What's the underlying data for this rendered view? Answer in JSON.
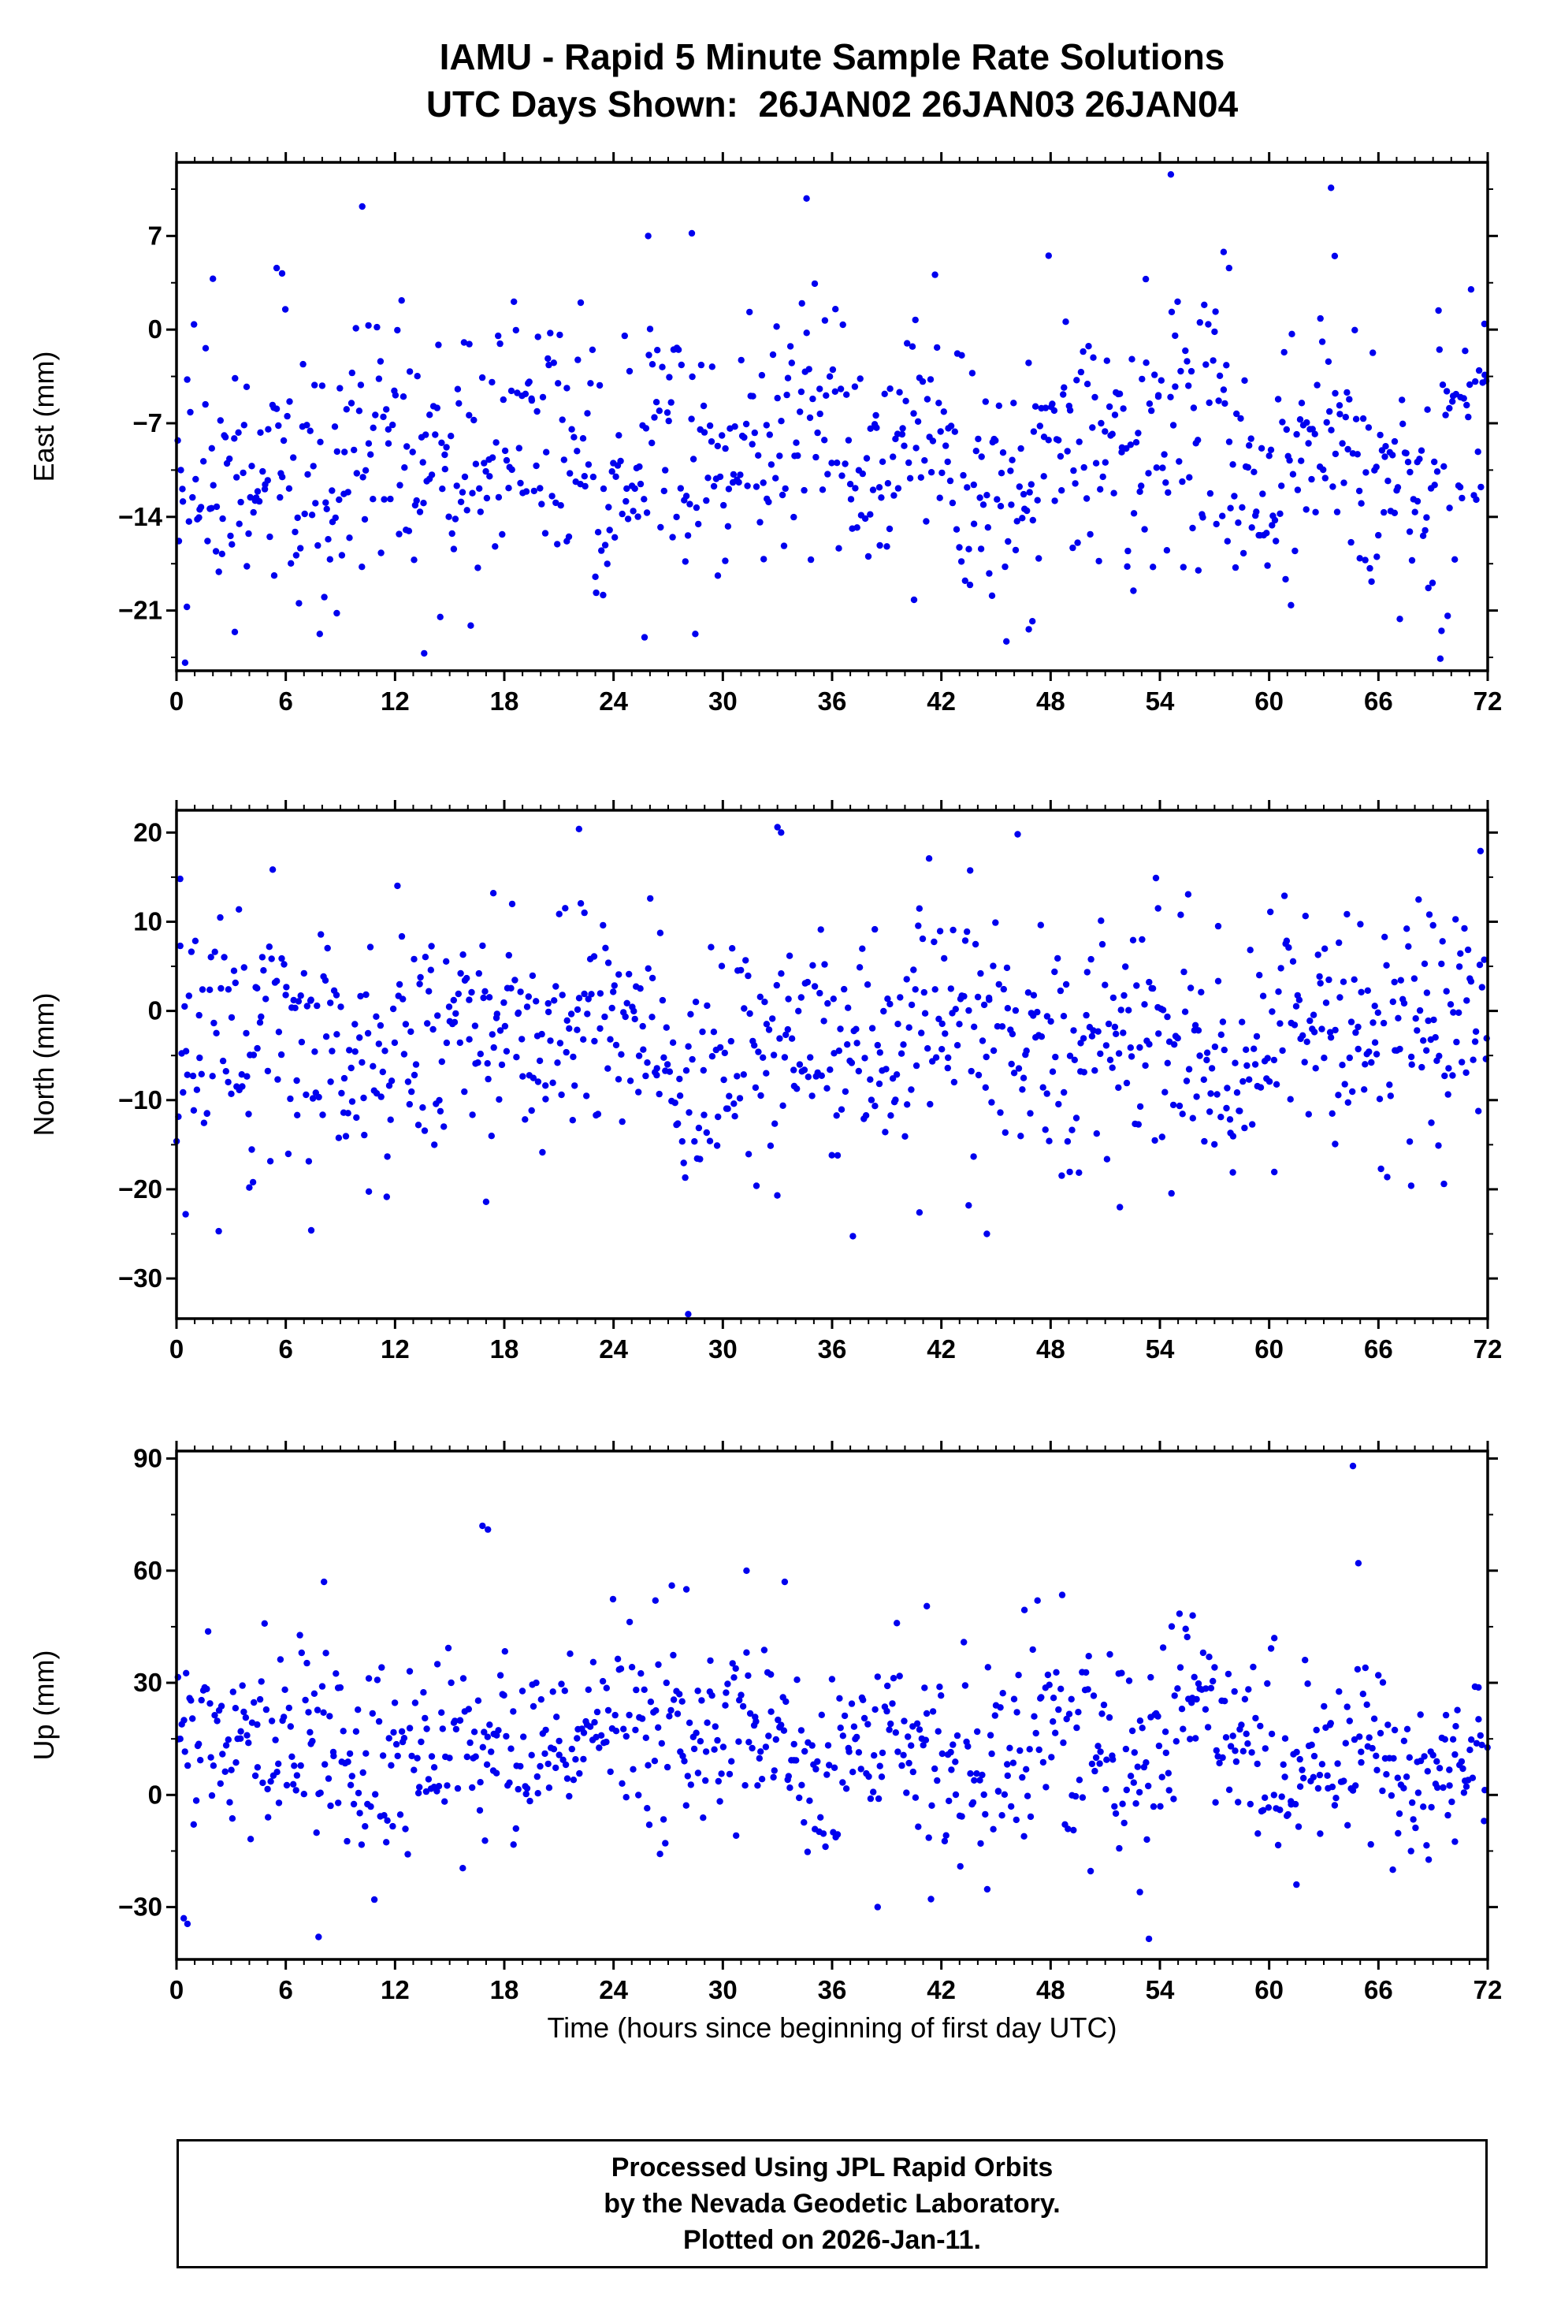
{
  "page": {
    "title_line1": "IAMU - Rapid 5 Minute Sample Rate Solutions",
    "title_line2": "UTC Days Shown:  26JAN02 26JAN03 26JAN04",
    "xlabel": "Time (hours since beginning of first day UTC)",
    "footer_lines": [
      "Processed Using JPL Rapid Orbits",
      "by the Nevada Geodetic Laboratory.",
      "Plotted on 2026-Jan-11."
    ]
  },
  "style": {
    "point_color": "#0000EE",
    "axis_color": "#000000",
    "background": "#FFFFFF"
  },
  "chart_data": [
    {
      "type": "scatter",
      "panel": "east",
      "ylabel": "East (mm)",
      "xlim": [
        0,
        72
      ],
      "ylim": [
        -25.5,
        12.5
      ],
      "xticks": [
        0,
        6,
        12,
        18,
        24,
        30,
        36,
        42,
        48,
        54,
        60,
        66,
        72
      ],
      "yticks": [
        7,
        0,
        -7,
        -14,
        -21
      ],
      "x_minor_step": 1,
      "y_minor_step": 3.5,
      "marker": {
        "shape": "circle",
        "radius_px": 4.2
      },
      "n_points": 860,
      "seed": 42,
      "distribution": {
        "mean": -9.5,
        "std": 4.8
      },
      "wander": [
        {
          "amp": 1.8,
          "period": 7.3
        },
        {
          "amp": 1.4,
          "period": 19.0
        }
      ],
      "outliers": [
        [
          10.2,
          9.2
        ],
        [
          34.6,
          9.8
        ],
        [
          54.6,
          11.6
        ],
        [
          63.4,
          10.6
        ],
        [
          25.9,
          7.0
        ],
        [
          28.3,
          7.2
        ],
        [
          57.5,
          5.8
        ],
        [
          57.8,
          4.6
        ],
        [
          63.6,
          5.5
        ],
        [
          2.0,
          3.8
        ],
        [
          5.5,
          4.6
        ],
        [
          5.8,
          4.2
        ],
        [
          69.4,
          -24.6
        ],
        [
          13.6,
          -24.2
        ],
        [
          25.7,
          -23.0
        ],
        [
          3.2,
          -22.6
        ],
        [
          46.8,
          -22.4
        ],
        [
          47.0,
          -21.8
        ],
        [
          69.8,
          -21.4
        ],
        [
          8.8,
          -21.2
        ],
        [
          61.2,
          -20.6
        ],
        [
          40.5,
          -20.2
        ]
      ]
    },
    {
      "type": "scatter",
      "panel": "north",
      "ylabel": "North (mm)",
      "xlim": [
        0,
        72
      ],
      "ylim": [
        -34.5,
        22.5
      ],
      "xticks": [
        0,
        6,
        12,
        18,
        24,
        30,
        36,
        42,
        48,
        54,
        60,
        66,
        72
      ],
      "yticks": [
        20,
        10,
        0,
        -10,
        -20,
        -30
      ],
      "x_minor_step": 1,
      "y_minor_step": 5,
      "marker": {
        "shape": "circle",
        "radius_px": 4.2
      },
      "n_points": 860,
      "seed": 137,
      "distribution": {
        "mean": -3.2,
        "std": 6.6
      },
      "wander": [
        {
          "amp": 2.4,
          "period": 9.5
        },
        {
          "amp": 1.8,
          "period": 23.0
        }
      ],
      "outliers": [
        [
          22.1,
          20.4
        ],
        [
          33.0,
          20.6
        ],
        [
          33.2,
          20.0
        ],
        [
          0.2,
          14.8
        ],
        [
          53.9,
          11.5
        ],
        [
          57.2,
          9.5
        ],
        [
          68.8,
          10.8
        ],
        [
          69.0,
          9.6
        ],
        [
          17.4,
          13.2
        ],
        [
          22.4,
          11.0
        ],
        [
          28.1,
          -34.0
        ],
        [
          44.5,
          -25.0
        ],
        [
          7.4,
          -24.6
        ],
        [
          0.5,
          -22.8
        ],
        [
          17.0,
          -21.4
        ],
        [
          40.8,
          -22.6
        ],
        [
          43.5,
          -21.8
        ],
        [
          51.8,
          -22.0
        ],
        [
          67.8,
          -19.6
        ],
        [
          69.6,
          -19.4
        ],
        [
          4.0,
          -19.8
        ],
        [
          4.2,
          -19.2
        ]
      ]
    },
    {
      "type": "scatter",
      "panel": "up",
      "ylabel": "Up (mm)",
      "xlim": [
        0,
        72
      ],
      "ylim": [
        -44,
        92
      ],
      "xticks": [
        0,
        6,
        12,
        18,
        24,
        30,
        36,
        42,
        48,
        54,
        60,
        66,
        72
      ],
      "yticks": [
        90,
        60,
        30,
        0,
        -30
      ],
      "x_minor_step": 1,
      "y_minor_step": 15,
      "marker": {
        "shape": "circle",
        "radius_px": 4.2
      },
      "n_points": 860,
      "seed": 1999,
      "distribution": {
        "mean": 13.5,
        "std": 12.5
      },
      "wander": [
        {
          "amp": 5.0,
          "period": 8.2
        },
        {
          "amp": 3.5,
          "period": 26.0
        }
      ],
      "outliers": [
        [
          16.8,
          72.0
        ],
        [
          17.1,
          71.0
        ],
        [
          64.6,
          88.0
        ],
        [
          64.9,
          62.0
        ],
        [
          8.1,
          57.0
        ],
        [
          27.2,
          56.0
        ],
        [
          28.0,
          55.0
        ],
        [
          31.3,
          60.0
        ],
        [
          33.4,
          57.0
        ],
        [
          26.3,
          52.0
        ],
        [
          41.2,
          50.5
        ],
        [
          55.8,
          48.0
        ],
        [
          53.4,
          -38.5
        ],
        [
          0.4,
          -33.0
        ],
        [
          0.6,
          -34.5
        ],
        [
          7.8,
          -38.0
        ],
        [
          38.5,
          -30.0
        ],
        [
          52.9,
          -26.0
        ],
        [
          61.5,
          -24.0
        ],
        [
          70.2,
          -12.5
        ]
      ]
    }
  ]
}
